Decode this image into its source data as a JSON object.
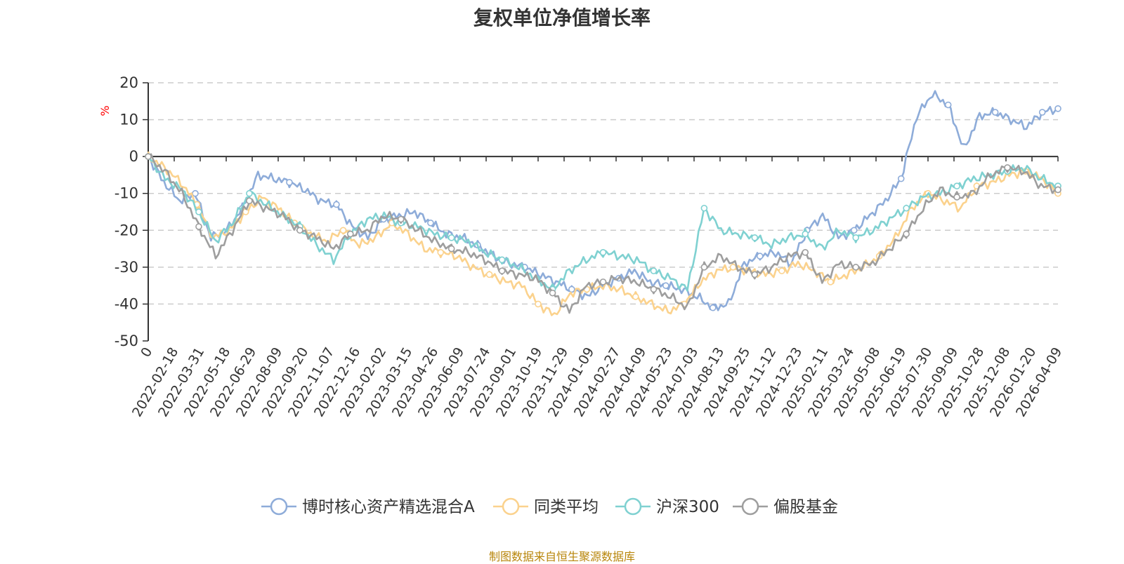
{
  "chart_data": {
    "type": "line",
    "title": "复权单位净值增长率",
    "ylabel": "%",
    "ylim": [
      -50,
      20
    ],
    "yticks": [
      20,
      10,
      0,
      -10,
      -20,
      -30,
      -40,
      -50
    ],
    "x_tick_labels": [
      "0",
      "2022-02-18",
      "2022-03-31",
      "2022-05-18",
      "2022-06-29",
      "2022-08-09",
      "2022-09-20",
      "2022-11-07",
      "2022-12-16",
      "2023-02-02",
      "2023-03-15",
      "2023-04-26",
      "2023-06-09",
      "2023-07-24",
      "2023-09-01",
      "2023-10-19",
      "2023-11-29",
      "2024-01-09",
      "2024-02-27",
      "2024-04-09",
      "2024-05-23",
      "2024-07-03",
      "2024-08-13",
      "2024-09-25",
      "2024-11-12",
      "2024-12-23",
      "2025-02-11",
      "2025-03-24",
      "2025-05-08",
      "2025-06-19",
      "2025-07-30",
      "2025-09-09",
      "2025-10-28",
      "2025-12-08",
      "2026-01-20",
      "2026-04-09"
    ],
    "grid": true,
    "legend_position": "bottom",
    "series": [
      {
        "name": "博时核心资产精选混合A",
        "color": "#8eacd9",
        "values": [
          0,
          -7,
          -12,
          -10,
          -22,
          -20,
          -14,
          -5,
          -6,
          -7,
          -9,
          -12,
          -13,
          -19,
          -22,
          -17,
          -16,
          -15,
          -18,
          -21,
          -22,
          -24,
          -27,
          -29,
          -30,
          -32,
          -34,
          -36,
          -38,
          -35,
          -33,
          -31,
          -34,
          -35,
          -36,
          -38,
          -41,
          -40,
          -29,
          -27,
          -26,
          -29,
          -20,
          -16,
          -22,
          -20,
          -16,
          -12,
          -6,
          11,
          17,
          14,
          2,
          11,
          12,
          10,
          8,
          12,
          13
        ]
      },
      {
        "name": "同类平均",
        "color": "#fbd28d",
        "values": [
          0,
          -3,
          -7,
          -13,
          -22,
          -20,
          -15,
          -11,
          -14,
          -18,
          -21,
          -23,
          -20,
          -24,
          -22,
          -18,
          -21,
          -25,
          -26,
          -27,
          -30,
          -32,
          -34,
          -35,
          -40,
          -43,
          -37,
          -36,
          -35,
          -36,
          -38,
          -40,
          -42,
          -40,
          -34,
          -31,
          -30,
          -31,
          -32,
          -31,
          -29,
          -31,
          -34,
          -32,
          -30,
          -27,
          -22,
          -14,
          -10,
          -12,
          -14,
          -8,
          -7,
          -5,
          -4,
          -6,
          -10
        ]
      },
      {
        "name": "沪深300",
        "color": "#7fd1d1",
        "values": [
          0,
          -6,
          -9,
          -15,
          -23,
          -18,
          -10,
          -13,
          -16,
          -19,
          -24,
          -28,
          -21,
          -17,
          -16,
          -18,
          -19,
          -21,
          -22,
          -23,
          -26,
          -28,
          -30,
          -33,
          -36,
          -31,
          -28,
          -26,
          -27,
          -28,
          -31,
          -33,
          -36,
          -14,
          -20,
          -21,
          -22,
          -24,
          -22,
          -21,
          -25,
          -20,
          -22,
          -20,
          -17,
          -14,
          -11,
          -10,
          -8,
          -6,
          -5,
          -4,
          -3,
          -6,
          -8
        ]
      },
      {
        "name": "偏股基金",
        "color": "#9e9e9e",
        "values": [
          0,
          -4,
          -10,
          -19,
          -27,
          -20,
          -12,
          -14,
          -16,
          -20,
          -22,
          -25,
          -21,
          -20,
          -16,
          -17,
          -20,
          -23,
          -25,
          -26,
          -28,
          -31,
          -32,
          -33,
          -37,
          -42,
          -35,
          -34,
          -33,
          -34,
          -36,
          -38,
          -41,
          -30,
          -27,
          -30,
          -32,
          -30,
          -27,
          -26,
          -34,
          -29,
          -30,
          -29,
          -25,
          -21,
          -14,
          -9,
          -11,
          -10,
          -5,
          -3,
          -4,
          -8,
          -9
        ]
      }
    ]
  },
  "source_note": "制图数据来自恒生聚源数据库"
}
